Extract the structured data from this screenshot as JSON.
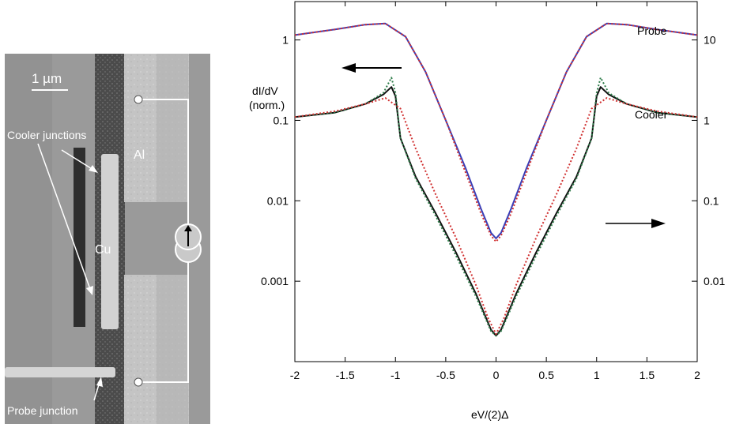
{
  "micrograph": {
    "scale_bar": "1 µm",
    "labels": {
      "al": "Al",
      "cu": "Cu",
      "cooler_junctions": "Cooler junctions",
      "probe_junction": "Probe junction"
    }
  },
  "chart_data": {
    "type": "line",
    "xlabel": "eV/(2)Δ",
    "ylabel_left": [
      "dI/dV",
      "(norm.)"
    ],
    "xlim": [
      -2,
      2
    ],
    "ylim_left": [
      0.0001,
      3
    ],
    "ylim_right": [
      0.001,
      30
    ],
    "y_scale": "log",
    "grid": false,
    "x_ticks": [
      "-2",
      "-1.5",
      "-1",
      "-0.5",
      "0",
      "0.5",
      "1",
      "1.5",
      "2"
    ],
    "y_ticks_left": [
      {
        "value": 1,
        "label": "1"
      },
      {
        "value": 0.1,
        "label": "0.1"
      },
      {
        "value": 0.01,
        "label": "0.01"
      },
      {
        "value": 0.001,
        "label": "0.001"
      }
    ],
    "y_ticks_right": [
      {
        "value": 10,
        "label": "10"
      },
      {
        "value": 1,
        "label": "1"
      },
      {
        "value": 0.1,
        "label": "0.1"
      },
      {
        "value": 0.01,
        "label": "0.01"
      }
    ],
    "curve_labels": {
      "probe": "Probe",
      "cooler": "Cooler"
    },
    "series": [
      {
        "color": "#3a3fb8",
        "style": "solid",
        "axis": "left",
        "x": [
          -2,
          -1.6,
          -1.3,
          -1.1,
          -0.9,
          -0.7,
          -0.5,
          -0.3,
          -0.15,
          -0.05,
          0,
          0.05,
          0.15,
          0.3,
          0.5,
          0.7,
          0.9,
          1.1,
          1.3,
          1.6,
          2
        ],
        "y": [
          1.15,
          1.35,
          1.55,
          1.6,
          1.1,
          0.4,
          0.1,
          0.025,
          0.008,
          0.004,
          0.0034,
          0.004,
          0.008,
          0.025,
          0.1,
          0.4,
          1.1,
          1.6,
          1.55,
          1.35,
          1.15
        ]
      },
      {
        "color": "#d03030",
        "style": "dotted",
        "axis": "left",
        "x": [
          -2,
          -1.6,
          -1.3,
          -1.1,
          -0.9,
          -0.7,
          -0.5,
          -0.3,
          -0.15,
          -0.05,
          0,
          0.05,
          0.15,
          0.3,
          0.5,
          0.7,
          0.9,
          1.1,
          1.3,
          1.6,
          2
        ],
        "y": [
          1.15,
          1.35,
          1.55,
          1.6,
          1.1,
          0.4,
          0.1,
          0.022,
          0.007,
          0.0037,
          0.0031,
          0.0037,
          0.007,
          0.022,
          0.1,
          0.4,
          1.1,
          1.6,
          1.55,
          1.35,
          1.15
        ]
      },
      {
        "color": "#111111",
        "style": "solid",
        "axis": "right",
        "x": [
          -2,
          -1.6,
          -1.3,
          -1.12,
          -1.04,
          -1.0,
          -0.95,
          -0.8,
          -0.6,
          -0.4,
          -0.2,
          -0.05,
          0,
          0.05,
          0.2,
          0.4,
          0.6,
          0.8,
          0.95,
          1.0,
          1.04,
          1.12,
          1.3,
          1.6,
          2
        ],
        "y": [
          1.1,
          1.25,
          1.6,
          2.1,
          2.6,
          2.0,
          0.6,
          0.2,
          0.07,
          0.023,
          0.007,
          0.0025,
          0.0021,
          0.0025,
          0.007,
          0.023,
          0.07,
          0.2,
          0.6,
          2.0,
          2.6,
          2.1,
          1.6,
          1.25,
          1.1
        ]
      },
      {
        "color": "#2e7d4a",
        "style": "dotted",
        "axis": "right",
        "x": [
          -2,
          -1.6,
          -1.3,
          -1.12,
          -1.04,
          -1.0,
          -0.95,
          -0.8,
          -0.6,
          -0.4,
          -0.2,
          -0.05,
          0,
          0.05,
          0.2,
          0.4,
          0.6,
          0.8,
          0.95,
          1.0,
          1.04,
          1.12,
          1.3,
          1.6,
          2
        ],
        "y": [
          1.1,
          1.25,
          1.6,
          2.2,
          3.4,
          2.2,
          0.6,
          0.19,
          0.065,
          0.021,
          0.0065,
          0.0024,
          0.0021,
          0.0024,
          0.0065,
          0.021,
          0.065,
          0.19,
          0.6,
          2.2,
          3.4,
          2.2,
          1.6,
          1.25,
          1.1
        ]
      },
      {
        "color": "#d03030",
        "style": "dotted",
        "axis": "right",
        "x": [
          -2,
          -1.6,
          -1.3,
          -1.1,
          -0.95,
          -0.8,
          -0.6,
          -0.4,
          -0.2,
          -0.08,
          0,
          0.08,
          0.2,
          0.4,
          0.6,
          0.8,
          0.95,
          1.1,
          1.3,
          1.6,
          2
        ],
        "y": [
          1.1,
          1.3,
          1.6,
          1.9,
          1.4,
          0.45,
          0.12,
          0.035,
          0.009,
          0.0035,
          0.0022,
          0.0035,
          0.009,
          0.035,
          0.12,
          0.45,
          1.4,
          1.9,
          1.6,
          1.3,
          1.1
        ]
      }
    ]
  }
}
